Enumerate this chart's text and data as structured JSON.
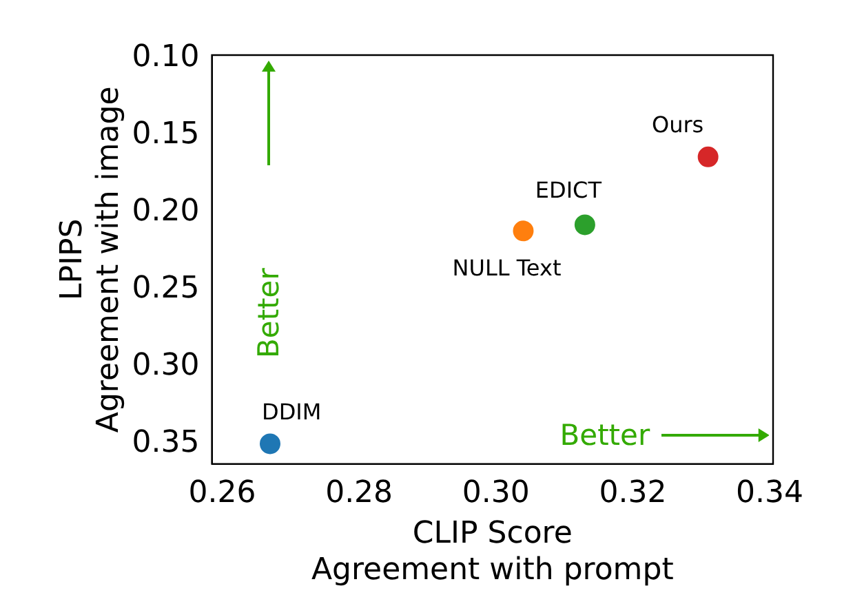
{
  "chart_data": {
    "type": "scatter",
    "xlabel": "CLIP Score\nAgreement with prompt",
    "ylabel": "LPIPS\nAgreement with image",
    "xlim": [
      0.2585,
      0.3405
    ],
    "ylim": [
      0.363,
      0.098
    ],
    "xticks": [
      0.26,
      0.28,
      {
        "value": 0.3,
        "label": "0.30"
      },
      0.32,
      0.34
    ],
    "yticks": [
      {
        "value": 0.1,
        "label": "0.10"
      },
      0.15,
      {
        "value": 0.2,
        "label": "0.20"
      },
      0.25,
      {
        "value": 0.3,
        "label": "0.30"
      },
      0.35
    ],
    "series": [
      {
        "name": "DDIM",
        "color": "#1f77b4",
        "x": [
          0.267
        ],
        "values": [
          0.35
        ]
      },
      {
        "name": "NULL Text",
        "color": "#ff7f0e",
        "x": [
          0.304
        ],
        "values": [
          0.212
        ]
      },
      {
        "name": "EDICT",
        "color": "#2ca02c",
        "x": [
          0.313
        ],
        "values": [
          0.208
        ]
      },
      {
        "name": "Ours",
        "color": "#d62728",
        "x": [
          0.331
        ],
        "values": [
          0.164
        ]
      }
    ],
    "annotations": [
      "Better",
      "Better"
    ],
    "marker": "circle",
    "grid": false,
    "legend": false
  }
}
